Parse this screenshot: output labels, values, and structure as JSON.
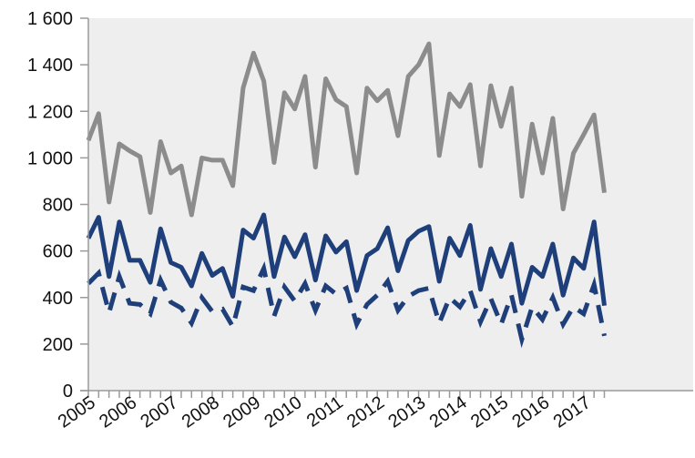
{
  "chart_data": {
    "type": "line",
    "title": "",
    "xlabel": "",
    "ylabel": "",
    "ylim": [
      0,
      1600
    ],
    "yticks": [
      0,
      200,
      400,
      600,
      800,
      1000,
      1200,
      1400,
      1600
    ],
    "ytick_labels": [
      "0",
      "200",
      "400",
      "600",
      "800",
      "1 000",
      "1 200",
      "1 400",
      "1 600"
    ],
    "x_start_year": 2005,
    "periods_per_year": 4,
    "x_labels": [
      "2005",
      "2006",
      "2007",
      "2008",
      "2009",
      "2010",
      "2011",
      "2012",
      "2013",
      "2014",
      "2015",
      "2016",
      "2017"
    ],
    "grid": false,
    "plot_background": "#eeeeee",
    "series": [
      {
        "color": "#8c8c8c",
        "style": "solid",
        "values": [
          1075,
          1190,
          810,
          1060,
          1030,
          1005,
          765,
          1070,
          935,
          965,
          755,
          1000,
          990,
          990,
          880,
          1300,
          1450,
          1330,
          980,
          1280,
          1210,
          1350,
          960,
          1340,
          1250,
          1220,
          935,
          1300,
          1245,
          1290,
          1095,
          1350,
          1400,
          1490,
          1010,
          1275,
          1220,
          1315,
          965,
          1310,
          1135,
          1300,
          835,
          1145,
          935,
          1170,
          780,
          1020,
          1100,
          1185,
          850
        ]
      },
      {
        "color": "#1f3f7a",
        "style": "solid",
        "values": [
          655,
          745,
          490,
          725,
          560,
          560,
          465,
          695,
          550,
          530,
          450,
          590,
          495,
          525,
          405,
          690,
          655,
          755,
          490,
          660,
          575,
          670,
          475,
          665,
          595,
          640,
          430,
          580,
          610,
          700,
          515,
          645,
          685,
          705,
          470,
          655,
          580,
          710,
          435,
          610,
          490,
          630,
          375,
          530,
          490,
          630,
          410,
          570,
          525,
          725,
          365
        ]
      },
      {
        "color": "#1f3f7a",
        "style": "dashed",
        "values": [
          460,
          505,
          335,
          490,
          375,
          370,
          330,
          475,
          380,
          355,
          290,
          400,
          340,
          350,
          275,
          445,
          430,
          525,
          320,
          445,
          385,
          460,
          345,
          450,
          415,
          440,
          285,
          370,
          410,
          470,
          345,
          405,
          430,
          440,
          290,
          400,
          360,
          430,
          295,
          395,
          285,
          410,
          220,
          360,
          305,
          400,
          285,
          360,
          330,
          455,
          235
        ]
      }
    ]
  }
}
